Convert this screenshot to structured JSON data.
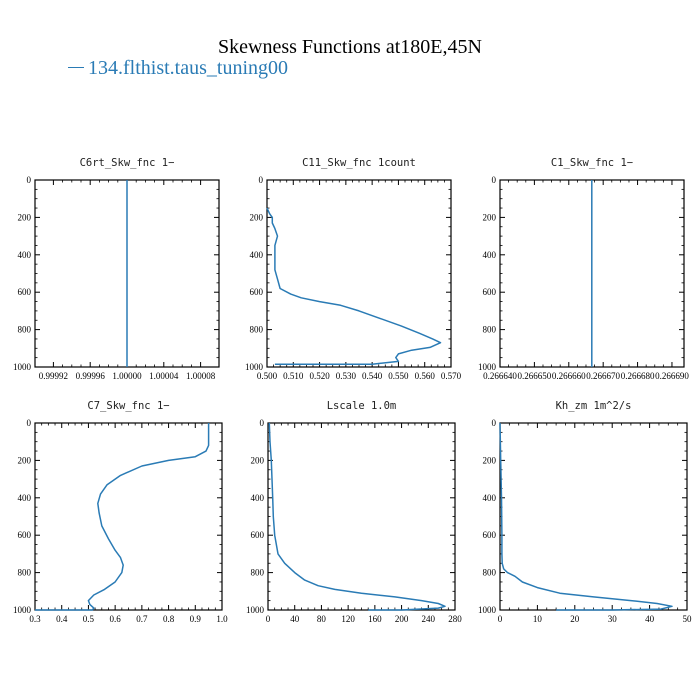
{
  "title": "Skewness Functions at180E,45N",
  "legend": {
    "label": "134.flthist.taus_tuning00",
    "color": "#2a7bb5"
  },
  "chart_data": [
    {
      "type": "line",
      "title": "C6rt_Skw_fnc   1−",
      "xlim": [
        0.9999,
        1.0001
      ],
      "ylim": [
        1000,
        0
      ],
      "xticks": [
        0.99992,
        0.99996,
        1.0,
        1.00004,
        1.00008
      ],
      "xtick_labels": [
        "0.99992",
        "0.99996",
        "1.00000",
        "1.00004",
        "1.00008"
      ],
      "yticks": [
        0,
        200,
        400,
        600,
        800,
        1000
      ],
      "series": [
        {
          "color": "#2a7bb5",
          "x": [
            1.0,
            1.0
          ],
          "y": [
            0,
            1000
          ]
        }
      ]
    },
    {
      "type": "line",
      "title": "C11_Skw_fnc   1count",
      "xlim": [
        0.5,
        0.57
      ],
      "ylim": [
        1000,
        0
      ],
      "xticks": [
        0.5,
        0.51,
        0.52,
        0.53,
        0.54,
        0.55,
        0.56,
        0.57
      ],
      "xtick_labels": [
        "0.500",
        "0.510",
        "0.520",
        "0.530",
        "0.540",
        "0.550",
        "0.560",
        "0.570"
      ],
      "yticks": [
        0,
        200,
        400,
        600,
        800,
        1000
      ],
      "series": [
        {
          "color": "#2a7bb5",
          "x": [
            0.5,
            0.501,
            0.502,
            0.502,
            0.503,
            0.504,
            0.503,
            0.503,
            0.503,
            0.504,
            0.505,
            0.509,
            0.513,
            0.52,
            0.528,
            0.535,
            0.543,
            0.551,
            0.558,
            0.563,
            0.566,
            0.562,
            0.555,
            0.55,
            0.549,
            0.55,
            0.54,
            0.52,
            0.503
          ],
          "y": [
            150,
            180,
            200,
            230,
            260,
            300,
            350,
            400,
            480,
            530,
            580,
            610,
            630,
            650,
            670,
            700,
            740,
            780,
            820,
            850,
            870,
            895,
            910,
            930,
            950,
            970,
            985,
            985,
            985
          ]
        }
      ]
    },
    {
      "type": "line",
      "title": "C1_Skw_fnc   1−",
      "xlim": [
        0.26664,
        0.2666935
      ],
      "ylim": [
        1000,
        0
      ],
      "xticks": [
        0.26664,
        0.26665,
        0.26666,
        0.26667,
        0.26668,
        0.26669
      ],
      "xtick_labels": [
        "0.266640",
        "0.266650",
        "0.266660",
        "0.266670",
        "0.266680",
        "0.266690"
      ],
      "yticks": [
        0,
        200,
        400,
        600,
        800,
        1000
      ],
      "series": [
        {
          "color": "#2a7bb5",
          "x": [
            0.2666667,
            0.2666667
          ],
          "y": [
            0,
            1000
          ]
        }
      ]
    },
    {
      "type": "line",
      "title": "C7_Skw_fnc   1−",
      "xlim": [
        0.3,
        1.0
      ],
      "ylim": [
        1000,
        0
      ],
      "xticks": [
        0.3,
        0.4,
        0.5,
        0.6,
        0.7,
        0.8,
        0.9,
        1.0
      ],
      "xtick_labels": [
        "0.3",
        "0.4",
        "0.5",
        "0.6",
        "0.7",
        "0.8",
        "0.9",
        "1.0"
      ],
      "yticks": [
        0,
        200,
        400,
        600,
        800,
        1000
      ],
      "series": [
        {
          "color": "#2a7bb5",
          "x": [
            0.95,
            0.95,
            0.94,
            0.9,
            0.8,
            0.7,
            0.62,
            0.57,
            0.545,
            0.535,
            0.54,
            0.55,
            0.575,
            0.6,
            0.62,
            0.63,
            0.625,
            0.6,
            0.56,
            0.52,
            0.5,
            0.505,
            0.52,
            0.515,
            0.3
          ],
          "y": [
            0,
            120,
            150,
            180,
            200,
            230,
            280,
            330,
            380,
            430,
            480,
            550,
            620,
            680,
            720,
            760,
            800,
            850,
            890,
            920,
            950,
            970,
            990,
            1000,
            1000
          ]
        }
      ]
    },
    {
      "type": "line",
      "title": "Lscale   1.0m",
      "xlim": [
        0,
        280
      ],
      "ylim": [
        1000,
        0
      ],
      "xticks": [
        0,
        40,
        80,
        120,
        160,
        200,
        240,
        280
      ],
      "xtick_labels": [
        "0",
        "40",
        "80",
        "120",
        "160",
        "200",
        "240",
        "280"
      ],
      "yticks": [
        0,
        200,
        400,
        600,
        800,
        1000
      ],
      "series": [
        {
          "color": "#2a7bb5",
          "x": [
            2,
            3,
            5,
            6,
            7,
            8,
            10,
            15,
            25,
            40,
            55,
            75,
            100,
            140,
            190,
            230,
            255,
            265,
            255,
            200,
            150
          ],
          "y": [
            0,
            100,
            200,
            300,
            400,
            500,
            600,
            700,
            750,
            800,
            840,
            870,
            890,
            910,
            930,
            950,
            965,
            980,
            990,
            1000,
            1000
          ]
        }
      ]
    },
    {
      "type": "line",
      "title": "Kh_zm   1m^2/s",
      "xlim": [
        0,
        50
      ],
      "ylim": [
        1000,
        0
      ],
      "xticks": [
        0,
        10,
        20,
        30,
        40,
        50
      ],
      "xtick_labels": [
        "0",
        "10",
        "20",
        "30",
        "40",
        "50"
      ],
      "yticks": [
        0,
        200,
        400,
        600,
        800,
        1000
      ],
      "series": [
        {
          "color": "#2a7bb5",
          "x": [
            0,
            0.2,
            0.4,
            0.5,
            0.5,
            0.6,
            1,
            2,
            4,
            6,
            10,
            16,
            25,
            35,
            42,
            46,
            43,
            30,
            15
          ],
          "y": [
            0,
            200,
            400,
            600,
            700,
            750,
            780,
            800,
            820,
            850,
            880,
            910,
            930,
            950,
            965,
            980,
            995,
            1000,
            1000
          ]
        }
      ]
    }
  ]
}
